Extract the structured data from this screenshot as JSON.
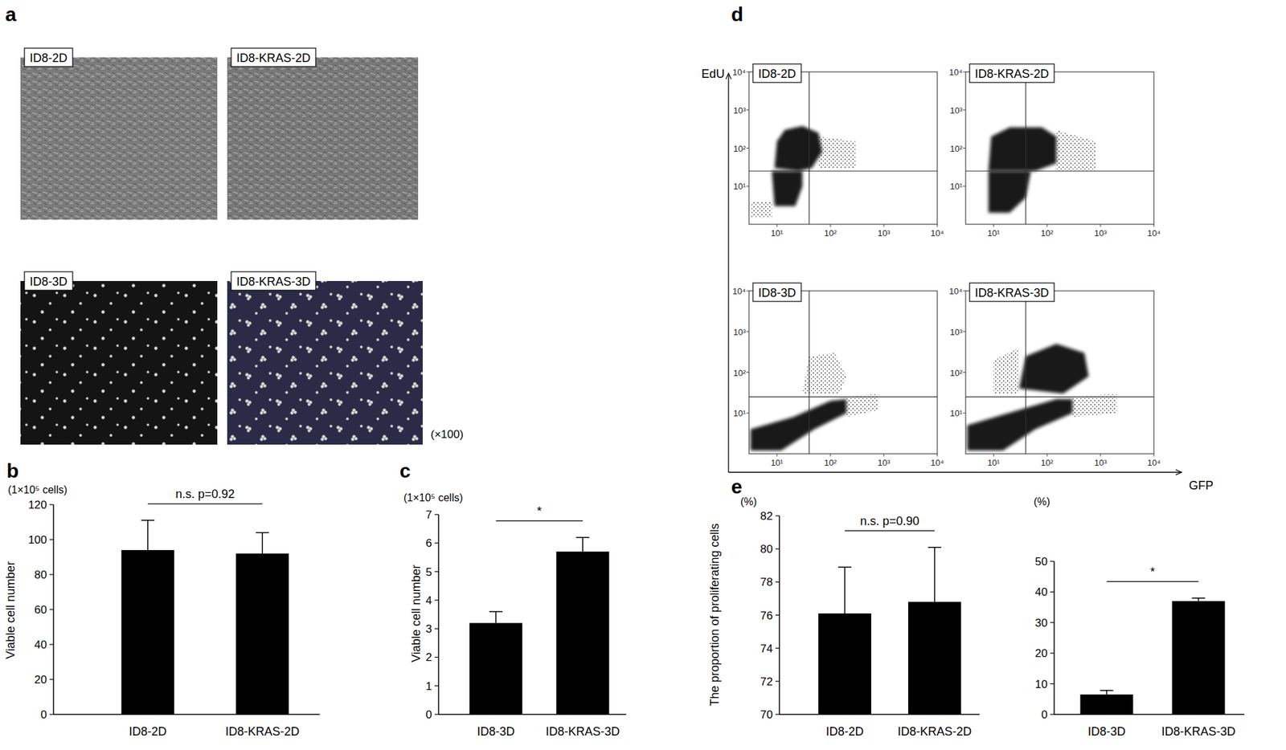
{
  "panel_labels": [
    "a",
    "b",
    "c",
    "d",
    "e"
  ],
  "photos": [
    {
      "label": "ID8-2D",
      "color": "#7b7b7b"
    },
    {
      "label": "ID8-KRAS-2D",
      "color": "#787878"
    },
    {
      "label": "ID8-3D",
      "color": "#141414"
    },
    {
      "label": "ID8-KRAS-3D",
      "color": "#2b2b47"
    }
  ],
  "magnification": "(×100)",
  "flow_axis_labels": {
    "x": "GFP",
    "y": "EdU"
  },
  "chart_data": [
    {
      "type": "bar",
      "subtitle": "(1×10⁵ cells)",
      "ylabel": "Viable cell number",
      "categories": [
        "ID8-2D",
        "ID8-KRAS-2D"
      ],
      "values": [
        94,
        92
      ],
      "errors": [
        17,
        12
      ],
      "color": "#000000",
      "ylim": [
        0,
        120
      ],
      "yticks": [
        0,
        20,
        40,
        60,
        80,
        100,
        120
      ],
      "annotation": "n.s. p=0.92"
    },
    {
      "type": "bar",
      "subtitle": "(1×10⁵ cells)",
      "ylabel": "Viable cell number",
      "categories": [
        "ID8-3D",
        "ID8-KRAS-3D"
      ],
      "values": [
        3.2,
        5.7
      ],
      "errors": [
        0.4,
        0.5
      ],
      "color": "#000000",
      "ylim": [
        0,
        7
      ],
      "yticks": [
        0,
        1,
        2,
        3,
        4,
        5,
        6,
        7
      ],
      "annotation": "*"
    },
    {
      "type": "scatter",
      "title": "ID8-2D",
      "log": true,
      "xlim": [
        3,
        10000
      ],
      "ylim": [
        1,
        10000
      ],
      "xticks": [
        {
          "value": 10,
          "label": "10¹"
        },
        {
          "value": 100,
          "label": "10²"
        },
        {
          "value": 1000,
          "label": "10³"
        },
        {
          "value": 10000,
          "label": "10⁴"
        }
      ],
      "yticks": [
        {
          "value": 10,
          "label": "10¹"
        },
        {
          "value": 100,
          "label": "10²"
        },
        {
          "value": 1000,
          "label": "10³"
        },
        {
          "value": 10000,
          "label": "10⁴"
        }
      ],
      "gate": {
        "x": 40,
        "y": 25
      },
      "regions": [
        {
          "marker": "dense",
          "outline": [
            [
              9,
              30
            ],
            [
              10,
              150
            ],
            [
              14,
              300
            ],
            [
              30,
              380
            ],
            [
              60,
              250
            ],
            [
              70,
              80
            ],
            [
              45,
              30
            ],
            [
              25,
              25
            ]
          ]
        },
        {
          "marker": "dense",
          "outline": [
            [
              9,
              3
            ],
            [
              8,
              25
            ],
            [
              30,
              25
            ],
            [
              30,
              10
            ],
            [
              22,
              3
            ]
          ]
        },
        {
          "marker": "sparse",
          "outline": [
            [
              3.2,
              1.5
            ],
            [
              3.2,
              4
            ],
            [
              8,
              4
            ],
            [
              8,
              1.5
            ]
          ]
        },
        {
          "marker": "sparse",
          "outline": [
            [
              60,
              30
            ],
            [
              60,
              200
            ],
            [
              300,
              150
            ],
            [
              300,
              30
            ]
          ]
        }
      ]
    },
    {
      "type": "scatter",
      "title": "ID8-KRAS-2D",
      "log": true,
      "xlim": [
        3,
        10000
      ],
      "ylim": [
        1,
        10000
      ],
      "xticks": [
        {
          "value": 10,
          "label": "10¹"
        },
        {
          "value": 100,
          "label": "10²"
        },
        {
          "value": 1000,
          "label": "10³"
        },
        {
          "value": 10000,
          "label": "10⁴"
        }
      ],
      "yticks": [
        {
          "value": 10,
          "label": "10¹"
        },
        {
          "value": 100,
          "label": "10²"
        },
        {
          "value": 1000,
          "label": "10³"
        },
        {
          "value": 10000,
          "label": "10⁴"
        }
      ],
      "gate": {
        "x": 40,
        "y": 25
      },
      "regions": [
        {
          "marker": "dense",
          "outline": [
            [
              8,
              25
            ],
            [
              9,
              200
            ],
            [
              20,
              350
            ],
            [
              80,
              350
            ],
            [
              150,
              200
            ],
            [
              150,
              40
            ],
            [
              60,
              25
            ]
          ]
        },
        {
          "marker": "dense",
          "outline": [
            [
              8,
              2
            ],
            [
              8,
              25
            ],
            [
              50,
              25
            ],
            [
              40,
              5
            ],
            [
              20,
              2
            ]
          ]
        },
        {
          "marker": "sparse",
          "outline": [
            [
              150,
              25
            ],
            [
              150,
              300
            ],
            [
              800,
              150
            ],
            [
              800,
              25
            ]
          ]
        }
      ]
    },
    {
      "type": "scatter",
      "title": "ID8-3D",
      "log": true,
      "xlim": [
        3,
        10000
      ],
      "ylim": [
        1,
        10000
      ],
      "xticks": [
        {
          "value": 10,
          "label": "10¹"
        },
        {
          "value": 100,
          "label": "10²"
        },
        {
          "value": 1000,
          "label": "10³"
        },
        {
          "value": 10000,
          "label": "10⁴"
        }
      ],
      "yticks": [
        {
          "value": 10,
          "label": "10¹"
        },
        {
          "value": 100,
          "label": "10²"
        },
        {
          "value": 1000,
          "label": "10³"
        },
        {
          "value": 10000,
          "label": "10⁴"
        }
      ],
      "gate": {
        "x": 40,
        "y": 25
      },
      "regions": [
        {
          "marker": "dense",
          "outline": [
            [
              3.2,
              1.2
            ],
            [
              3.2,
              4
            ],
            [
              20,
              8
            ],
            [
              100,
              20
            ],
            [
              200,
              22
            ],
            [
              200,
              10
            ],
            [
              50,
              4
            ],
            [
              12,
              1.2
            ]
          ]
        },
        {
          "marker": "sparse",
          "outline": [
            [
              30,
              30
            ],
            [
              40,
              250
            ],
            [
              120,
              300
            ],
            [
              200,
              80
            ],
            [
              150,
              30
            ]
          ]
        },
        {
          "marker": "sparse",
          "outline": [
            [
              200,
              8
            ],
            [
              200,
              25
            ],
            [
              800,
              30
            ],
            [
              800,
              12
            ]
          ]
        }
      ]
    },
    {
      "type": "scatter",
      "title": "ID8-KRAS-3D",
      "log": true,
      "xlim": [
        3,
        10000
      ],
      "ylim": [
        1,
        10000
      ],
      "xticks": [
        {
          "value": 10,
          "label": "10¹"
        },
        {
          "value": 100,
          "label": "10²"
        },
        {
          "value": 1000,
          "label": "10³"
        },
        {
          "value": 10000,
          "label": "10⁴"
        }
      ],
      "yticks": [
        {
          "value": 10,
          "label": "10¹"
        },
        {
          "value": 100,
          "label": "10²"
        },
        {
          "value": 1000,
          "label": "10³"
        },
        {
          "value": 10000,
          "label": "10⁴"
        }
      ],
      "gate": {
        "x": 40,
        "y": 25
      },
      "regions": [
        {
          "marker": "dense",
          "outline": [
            [
              3.2,
              1.2
            ],
            [
              3.2,
              5
            ],
            [
              30,
              12
            ],
            [
              150,
              22
            ],
            [
              300,
              22
            ],
            [
              300,
              10
            ],
            [
              60,
              4
            ],
            [
              15,
              1.2
            ]
          ]
        },
        {
          "marker": "dense",
          "outline": [
            [
              30,
              40
            ],
            [
              40,
              250
            ],
            [
              150,
              500
            ],
            [
              500,
              300
            ],
            [
              600,
              80
            ],
            [
              200,
              30
            ]
          ]
        },
        {
          "marker": "sparse",
          "outline": [
            [
              10,
              30
            ],
            [
              10,
              200
            ],
            [
              30,
              400
            ],
            [
              30,
              30
            ]
          ]
        },
        {
          "marker": "sparse",
          "outline": [
            [
              300,
              8
            ],
            [
              300,
              25
            ],
            [
              2000,
              30
            ],
            [
              2000,
              10
            ]
          ]
        }
      ]
    },
    {
      "type": "bar",
      "subtitle": "(%)",
      "ylabel": "The proportion of proliferating cells",
      "categories": [
        "ID8-2D",
        "ID8-KRAS-2D"
      ],
      "values": [
        76.1,
        76.8
      ],
      "errors": [
        2.8,
        3.3
      ],
      "color": "#000000",
      "ylim": [
        70,
        82
      ],
      "yticks": [
        70,
        72,
        74,
        76,
        78,
        80,
        82
      ],
      "annotation": "n.s. p=0.90"
    },
    {
      "type": "bar",
      "subtitle": "(%)",
      "categories": [
        "ID8-3D",
        "ID8-KRAS-3D"
      ],
      "values": [
        6.5,
        37
      ],
      "errors": [
        1.3,
        1.0
      ],
      "color": "#000000",
      "ylim": [
        0,
        50
      ],
      "yticks": [
        0,
        10,
        20,
        30,
        40,
        50
      ],
      "annotation": "*"
    }
  ]
}
